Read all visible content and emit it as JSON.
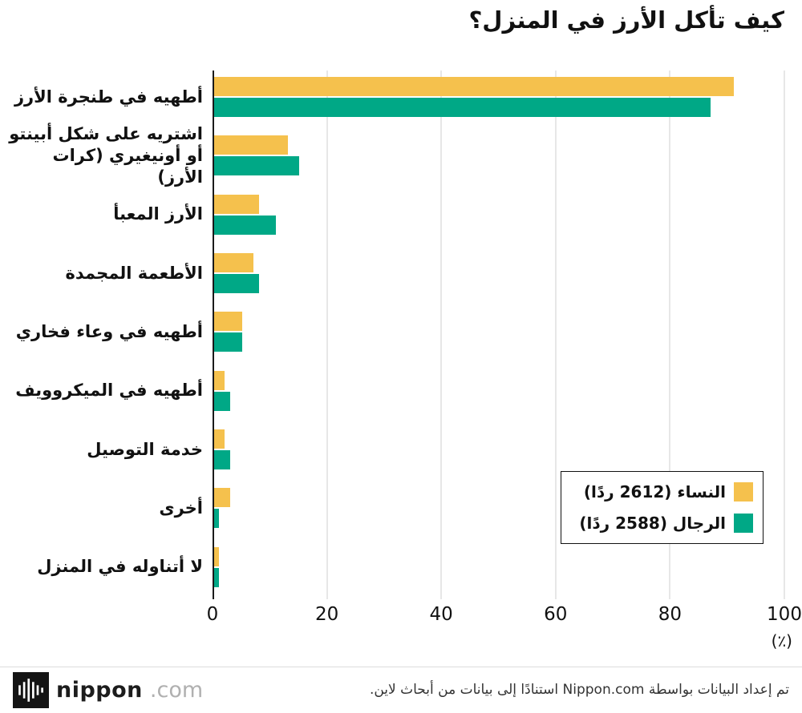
{
  "title": "كيف تأكل الأرز في المنزل؟",
  "chart_data": {
    "type": "bar",
    "orientation": "horizontal",
    "title": "كيف تأكل الأرز في المنزل؟",
    "categories": [
      "أطهيه في طنجرة الأرز",
      "اشتريه على شكل أبينتو أو أونيغيري (كرات الأرز)",
      "الأرز المعبأ",
      "الأطعمة المجمدة",
      "أطهيه في وعاء فخاري",
      "أطهيه في الميكروويف",
      "خدمة التوصيل",
      "أخرى",
      "لا أتناوله في المنزل"
    ],
    "series": [
      {
        "name": "النساء (2612 ردًا)",
        "color": "#F5C14D",
        "values": [
          91,
          13,
          8,
          7,
          5,
          2,
          2,
          3,
          1
        ]
      },
      {
        "name": "الرجال (2588 ردًا)",
        "color": "#00A886",
        "values": [
          87,
          15,
          11,
          8,
          5,
          3,
          3,
          1,
          1
        ]
      }
    ],
    "xlim": [
      0,
      100
    ],
    "xticks": [
      0,
      20,
      40,
      60,
      80,
      100
    ],
    "xunit": "(٪)",
    "grid": true,
    "legend_position": "inside-bottom-right"
  },
  "footer": {
    "brand_name": "nippon",
    "brand_suffix": ".com",
    "attribution": "تم إعداد البيانات بواسطة Nippon.com استنادًا إلى بيانات من أبحاث لاين."
  },
  "colors": {
    "women": "#F5C14D",
    "men": "#00A886",
    "gridline": "#cfcfcf",
    "axis": "#1a1a1a"
  }
}
